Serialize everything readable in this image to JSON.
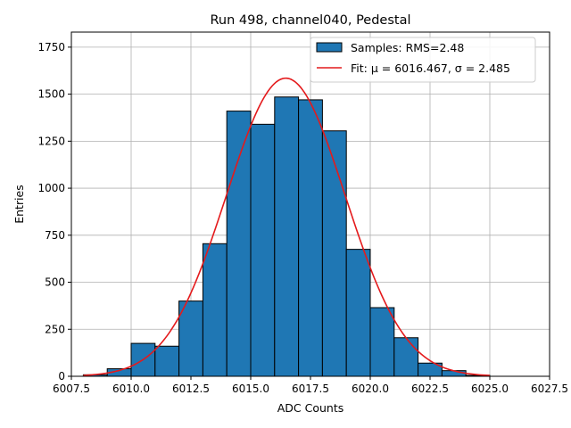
{
  "chart_data": {
    "type": "bar",
    "title": "Run 498, channel040, Pedestal",
    "xlabel": "ADC Counts",
    "ylabel": "Entries",
    "xlim": [
      6007.5,
      6027.5
    ],
    "ylim": [
      0,
      1830
    ],
    "xticks": [
      {
        "value": 6007.5,
        "label": "6007.5"
      },
      {
        "value": 6010.0,
        "label": "6010.0"
      },
      {
        "value": 6012.5,
        "label": "6012.5"
      },
      {
        "value": 6015.0,
        "label": "6015.0"
      },
      {
        "value": 6017.5,
        "label": "6017.5"
      },
      {
        "value": 6020.0,
        "label": "6020.0"
      },
      {
        "value": 6022.5,
        "label": "6022.5"
      },
      {
        "value": 6025.0,
        "label": "6025.0"
      },
      {
        "value": 6027.5,
        "label": "6027.5"
      }
    ],
    "yticks": [
      {
        "value": 0,
        "label": "0"
      },
      {
        "value": 250,
        "label": "250"
      },
      {
        "value": 500,
        "label": "500"
      },
      {
        "value": 750,
        "label": "750"
      },
      {
        "value": 1000,
        "label": "1000"
      },
      {
        "value": 1250,
        "label": "1250"
      },
      {
        "value": 1500,
        "label": "1500"
      },
      {
        "value": 1750,
        "label": "1750"
      }
    ],
    "grid": true,
    "legend_position": "top-right",
    "histogram": {
      "name": "Samples: RMS=2.48",
      "color": "#1f77b4",
      "bins": [
        {
          "x0": 6008,
          "x1": 6009,
          "count": 8
        },
        {
          "x0": 6009,
          "x1": 6010,
          "count": 40
        },
        {
          "x0": 6010,
          "x1": 6011,
          "count": 175
        },
        {
          "x0": 6011,
          "x1": 6012,
          "count": 160
        },
        {
          "x0": 6012,
          "x1": 6013,
          "count": 400
        },
        {
          "x0": 6013,
          "x1": 6014,
          "count": 705
        },
        {
          "x0": 6014,
          "x1": 6015,
          "count": 1410
        },
        {
          "x0": 6015,
          "x1": 6016,
          "count": 1340
        },
        {
          "x0": 6016,
          "x1": 6017,
          "count": 1485
        },
        {
          "x0": 6017,
          "x1": 6018,
          "count": 1470
        },
        {
          "x0": 6018,
          "x1": 6019,
          "count": 1305
        },
        {
          "x0": 6019,
          "x1": 6020,
          "count": 675
        },
        {
          "x0": 6020,
          "x1": 6021,
          "count": 365
        },
        {
          "x0": 6021,
          "x1": 6022,
          "count": 205
        },
        {
          "x0": 6022,
          "x1": 6023,
          "count": 70
        },
        {
          "x0": 6023,
          "x1": 6024,
          "count": 30
        },
        {
          "x0": 6024,
          "x1": 6025,
          "count": 5
        }
      ]
    },
    "fit": {
      "name": "Fit: μ = 6016.467, σ = 2.485",
      "color": "#e41a1c",
      "mu": 6016.467,
      "sigma": 2.485,
      "peak": 1585,
      "x_range": [
        6008,
        6025
      ]
    }
  }
}
